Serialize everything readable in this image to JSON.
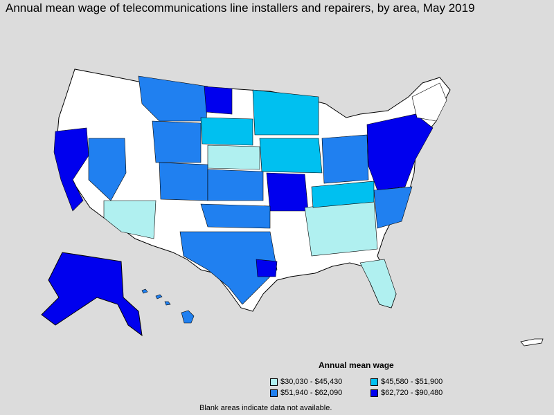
{
  "title": "Annual mean wage of telecommunications line installers and repairers, by area, May 2019",
  "legend": {
    "title": "Annual mean wage",
    "items": [
      {
        "label": "$30,030 - $45,430",
        "color": "#b0f0f0"
      },
      {
        "label": "$45,580 - $51,900",
        "color": "#00c0f0"
      },
      {
        "label": "$51,940 - $62,090",
        "color": "#2080f0"
      },
      {
        "label": "$62,720 - $90,480",
        "color": "#0000ee"
      }
    ]
  },
  "footnote": "Blank areas indicate data not available.",
  "colors": {
    "background": "#dcdcdc",
    "no_data": "#ffffff",
    "border": "#000000"
  }
}
